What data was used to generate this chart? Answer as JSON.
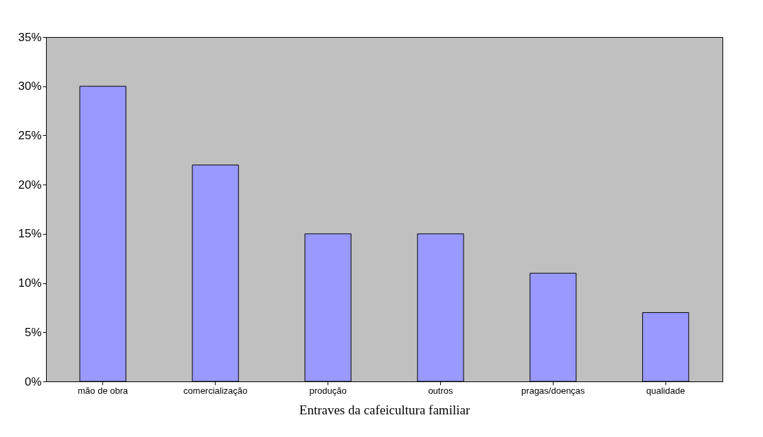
{
  "chart_data": {
    "type": "bar",
    "xlabel": "Entraves da cafeicultura familiar",
    "categories": [
      "mão de obra",
      "comercialização",
      "produção",
      "outros",
      "pragas/doenças",
      "qualidade"
    ],
    "values": [
      30,
      22,
      15,
      15,
      11,
      7
    ],
    "color": "#9999ff",
    "ylim": [
      0,
      35
    ],
    "yticks": [
      {
        "value": 0,
        "label": "0%"
      },
      {
        "value": 5,
        "label": "5%"
      },
      {
        "value": 10,
        "label": "10%"
      },
      {
        "value": 15,
        "label": "15%"
      },
      {
        "value": 20,
        "label": "20%"
      },
      {
        "value": 25,
        "label": "25%"
      },
      {
        "value": 30,
        "label": "30%"
      },
      {
        "value": 35,
        "label": "35%"
      }
    ],
    "grid": false
  }
}
